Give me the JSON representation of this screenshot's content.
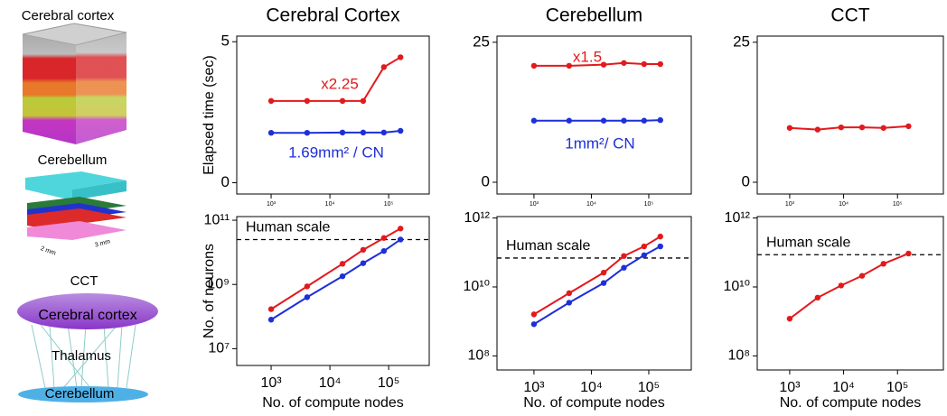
{
  "illustrations": {
    "cortex": "Cerebral cortex",
    "cerebellum": "Cerebellum",
    "size_a": "2 mm",
    "size_b": "3 mm",
    "cct": "CCT",
    "cct_cortex": "Cerebral cortex",
    "cct_thalamus": "Thalamus",
    "cct_cerebellum": "Cerebellum"
  },
  "chart_data": [
    {
      "type": "line",
      "title": "Cerebral Cortex",
      "ylabel": "Elapsed time (sec)",
      "xscale": "log",
      "x": [
        1000,
        4096,
        16384,
        36864,
        82944,
        158976
      ],
      "xlim": [
        260,
        490000
      ],
      "xticks": [
        {
          "value": 1000,
          "label": "10³"
        },
        {
          "value": 10000,
          "label": "10⁴"
        },
        {
          "value": 100000,
          "label": "10⁵"
        }
      ],
      "ylim": [
        -0.4,
        5.2
      ],
      "yticks": [
        0,
        5
      ],
      "series": [
        {
          "color": "#e3191c",
          "values": [
            2.9,
            2.9,
            2.9,
            2.9,
            4.1,
            4.45
          ]
        },
        {
          "color": "#1d2fd8",
          "values": [
            1.77,
            1.77,
            1.78,
            1.78,
            1.78,
            1.84
          ]
        }
      ],
      "annotations": [
        {
          "text": "x2.25",
          "color": "#e3191c"
        },
        {
          "text": "1.69mm² / CN",
          "color": "#1d2fd8"
        }
      ]
    },
    {
      "type": "line",
      "title": "Cerebellum",
      "xscale": "log",
      "x": [
        1000,
        4096,
        16384,
        36864,
        82944,
        158976
      ],
      "xlim": [
        227,
        550000
      ],
      "xticks": [
        {
          "value": 1000,
          "label": "10³"
        },
        {
          "value": 10000,
          "label": "10⁴"
        },
        {
          "value": 100000,
          "label": "10⁵"
        }
      ],
      "ylim": [
        -2.1,
        26.1
      ],
      "yticks": [
        0,
        25
      ],
      "series": [
        {
          "color": "#e3191c",
          "values": [
            20.8,
            20.8,
            21,
            21.3,
            21.1,
            21.1
          ]
        },
        {
          "color": "#1d2fd8",
          "values": [
            11,
            11,
            11,
            11,
            11,
            11.1
          ]
        }
      ],
      "annotations": [
        {
          "text": "x1.5",
          "color": "#e3191c"
        },
        {
          "text": "1mm²/ CN",
          "color": "#1d2fd8"
        }
      ]
    },
    {
      "type": "line",
      "title": "CCT",
      "xscale": "log",
      "x": [
        1000,
        3300,
        9000,
        22000,
        55000,
        160000
      ],
      "xlim": [
        250,
        710000
      ],
      "xticks": [
        {
          "value": 1000,
          "label": "10³"
        },
        {
          "value": 10000,
          "label": "10⁴"
        },
        {
          "value": 100000,
          "label": "10⁵"
        }
      ],
      "ylim": [
        -2.1,
        26.1
      ],
      "yticks": [
        0,
        25
      ],
      "series": [
        {
          "color": "#e3191c",
          "values": [
            9.7,
            9.4,
            9.8,
            9.8,
            9.7,
            10
          ]
        }
      ]
    },
    {
      "type": "line",
      "ylabel": "No. of neurons",
      "xlabel": "No. of compute nodes",
      "xscale": "log",
      "yscale": "log",
      "x": [
        1000,
        4096,
        16384,
        36864,
        82944,
        158976
      ],
      "xlim": [
        260,
        490000
      ],
      "xticks": [
        {
          "value": 1000,
          "label": "10³"
        },
        {
          "value": 10000,
          "label": "10⁴"
        },
        {
          "value": 100000,
          "label": "10⁵"
        }
      ],
      "ylim": [
        3000000,
        130000000000
      ],
      "yticks": [
        {
          "value": 10000000,
          "label": "10⁷"
        },
        {
          "value": 1000000000,
          "label": "10⁹"
        },
        {
          "value": 100000000000,
          "label": "10¹¹"
        }
      ],
      "reference": {
        "label": "Human scale",
        "value": 25000000000
      },
      "series": [
        {
          "color": "#e3191c",
          "values": [
            170000000.0,
            870000000.0,
            4400000000.0,
            12000000000.0,
            28000000000.0,
            55000000000.0
          ]
        },
        {
          "color": "#1d2fd8",
          "values": [
            80000000.0,
            400000000.0,
            1800000000.0,
            4600000000.0,
            11000000000.0,
            25000000000.0
          ]
        }
      ]
    },
    {
      "type": "line",
      "xlabel": "No. of compute nodes",
      "xscale": "log",
      "yscale": "log",
      "x": [
        1000,
        4096,
        16384,
        36864,
        82944,
        158976
      ],
      "xlim": [
        227,
        550000
      ],
      "xticks": [
        {
          "value": 1000,
          "label": "10³"
        },
        {
          "value": 10000,
          "label": "10⁴"
        },
        {
          "value": 100000,
          "label": "10⁵"
        }
      ],
      "ylim": [
        39000000,
        1100000000000
      ],
      "yticks": [
        {
          "value": 100000000,
          "label": "10⁸"
        },
        {
          "value": 10000000000,
          "label": "10¹⁰"
        },
        {
          "value": 1000000000000,
          "label": "10¹²"
        }
      ],
      "reference": {
        "label": "Human scale",
        "value": 69000000000
      },
      "series": [
        {
          "color": "#e3191c",
          "values": [
            1600000000.0,
            6600000000.0,
            26000000000.0,
            79000000000.0,
            150000000000.0,
            290000000000.0
          ]
        },
        {
          "color": "#1d2fd8",
          "values": [
            830000000.0,
            3500000000.0,
            13000000000.0,
            36000000000.0,
            83000000000.0,
            150000000000.0
          ]
        }
      ]
    },
    {
      "type": "line",
      "xlabel": "No. of compute nodes",
      "xscale": "log",
      "yscale": "log",
      "x": [
        1000,
        3300,
        9000,
        22000,
        55000,
        160000
      ],
      "xlim": [
        250,
        710000
      ],
      "xticks": [
        {
          "value": 1000,
          "label": "10³"
        },
        {
          "value": 10000,
          "label": "10⁴"
        },
        {
          "value": 100000,
          "label": "10⁵"
        }
      ],
      "ylim": [
        39000000,
        1100000000000
      ],
      "yticks": [
        {
          "value": 100000000,
          "label": "10⁸"
        },
        {
          "value": 10000000000,
          "label": "10¹⁰"
        },
        {
          "value": 1000000000000,
          "label": "10¹²"
        }
      ],
      "reference": {
        "label": "Human scale",
        "value": 86000000000
      },
      "series": [
        {
          "color": "#e3191c",
          "values": [
            1200000000.0,
            4900000000.0,
            11000000000.0,
            21000000000.0,
            47000000000.0,
            93000000000.0
          ]
        }
      ]
    }
  ]
}
